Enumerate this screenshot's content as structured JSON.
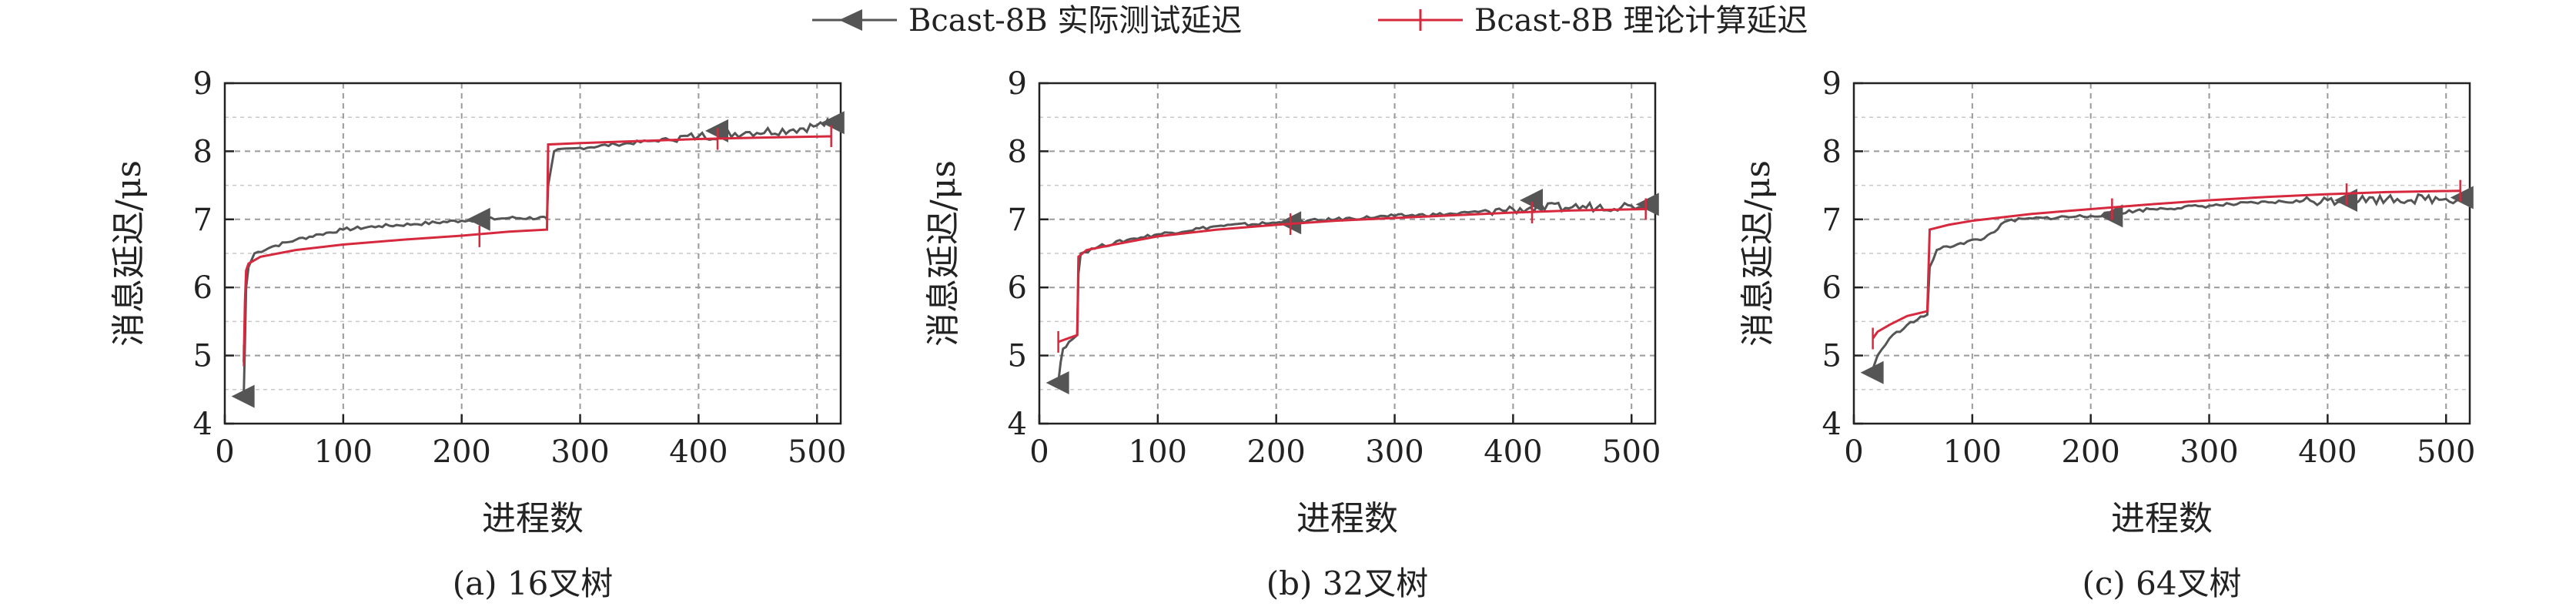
{
  "legend": {
    "position": "top-center",
    "entries": [
      {
        "label": "Bcast-8B 实际测试延迟",
        "color": "#555555",
        "marker": "left-triangle"
      },
      {
        "label": "Bcast-8B 理论计算延迟",
        "color": "#d6293e",
        "marker": "vertical-tick"
      }
    ]
  },
  "chart_data": [
    {
      "type": "line",
      "caption": "(a)  16叉树",
      "xlabel": "进程数",
      "ylabel": "消息延迟/μs",
      "xlim": [
        0,
        520
      ],
      "ylim": [
        4,
        9
      ],
      "xticks": [
        0,
        100,
        200,
        300,
        400,
        500
      ],
      "yticks": [
        4,
        5,
        6,
        7,
        8,
        9
      ],
      "grid": true,
      "series": [
        {
          "name": "Bcast-8B 实际测试延迟",
          "color": "#555555",
          "points": [
            [
              16,
              4.4
            ],
            [
              17,
              5.2
            ],
            [
              18,
              6.0
            ],
            [
              20,
              6.3
            ],
            [
              25,
              6.5
            ],
            [
              40,
              6.6
            ],
            [
              60,
              6.7
            ],
            [
              80,
              6.78
            ],
            [
              100,
              6.85
            ],
            [
              130,
              6.9
            ],
            [
              160,
              6.93
            ],
            [
              200,
              6.98
            ],
            [
              240,
              7.02
            ],
            [
              272,
              7.02
            ],
            [
              273,
              7.5
            ],
            [
              275,
              7.7
            ],
            [
              278,
              8.0
            ],
            [
              300,
              8.05
            ],
            [
              330,
              8.1
            ],
            [
              360,
              8.15
            ],
            [
              400,
              8.22
            ],
            [
              440,
              8.28
            ],
            [
              480,
              8.32
            ],
            [
              500,
              8.38
            ],
            [
              512,
              8.42
            ]
          ],
          "markers": [
            [
              16,
              4.4
            ],
            [
              215,
              7.0
            ],
            [
              416,
              8.3
            ],
            [
              514,
              8.42
            ]
          ]
        },
        {
          "name": "Bcast-8B 理论计算延迟",
          "color": "#d6293e",
          "points": [
            [
              16,
              4.9
            ],
            [
              17,
              5.8
            ],
            [
              18,
              6.25
            ],
            [
              20,
              6.35
            ],
            [
              30,
              6.45
            ],
            [
              60,
              6.55
            ],
            [
              100,
              6.63
            ],
            [
              150,
              6.7
            ],
            [
              200,
              6.76
            ],
            [
              240,
              6.82
            ],
            [
              272,
              6.85
            ],
            [
              273,
              8.1
            ],
            [
              300,
              8.12
            ],
            [
              350,
              8.15
            ],
            [
              400,
              8.18
            ],
            [
              450,
              8.2
            ],
            [
              512,
              8.22
            ]
          ],
          "markers": [
            [
              16,
              5.0
            ],
            [
              215,
              6.75
            ],
            [
              416,
              8.18
            ],
            [
              512,
              8.22
            ]
          ]
        }
      ]
    },
    {
      "type": "line",
      "caption": "(b)  32叉树",
      "xlabel": "进程数",
      "ylabel": "消息延迟/μs",
      "xlim": [
        0,
        520
      ],
      "ylim": [
        4,
        9
      ],
      "xticks": [
        0,
        100,
        200,
        300,
        400,
        500
      ],
      "yticks": [
        4,
        5,
        6,
        7,
        8,
        9
      ],
      "grid": true,
      "series": [
        {
          "name": "Bcast-8B 实际测试延迟",
          "color": "#555555",
          "points": [
            [
              16,
              4.6
            ],
            [
              18,
              4.9
            ],
            [
              20,
              5.1
            ],
            [
              25,
              5.2
            ],
            [
              32,
              5.3
            ],
            [
              33,
              6.2
            ],
            [
              35,
              6.5
            ],
            [
              50,
              6.6
            ],
            [
              80,
              6.72
            ],
            [
              100,
              6.78
            ],
            [
              150,
              6.9
            ],
            [
              200,
              6.95
            ],
            [
              250,
              7.0
            ],
            [
              300,
              7.05
            ],
            [
              350,
              7.08
            ],
            [
              400,
              7.15
            ],
            [
              450,
              7.18
            ],
            [
              500,
              7.2
            ],
            [
              512,
              7.22
            ]
          ],
          "markers": [
            [
              16,
              4.6
            ],
            [
              212,
              6.95
            ],
            [
              416,
              7.28
            ],
            [
              514,
              7.22
            ]
          ]
        },
        {
          "name": "Bcast-8B 理论计算延迟",
          "color": "#d6293e",
          "points": [
            [
              16,
              5.2
            ],
            [
              32,
              5.3
            ],
            [
              33,
              6.45
            ],
            [
              40,
              6.55
            ],
            [
              60,
              6.62
            ],
            [
              100,
              6.75
            ],
            [
              150,
              6.85
            ],
            [
              200,
              6.92
            ],
            [
              250,
              6.98
            ],
            [
              300,
              7.02
            ],
            [
              350,
              7.06
            ],
            [
              400,
              7.1
            ],
            [
              450,
              7.13
            ],
            [
              512,
              7.15
            ]
          ],
          "markers": [
            [
              16,
              5.2
            ],
            [
              212,
              6.93
            ],
            [
              416,
              7.1
            ],
            [
              512,
              7.15
            ]
          ]
        }
      ]
    },
    {
      "type": "line",
      "caption": "(c)  64叉树",
      "xlabel": "进程数",
      "ylabel": "消息延迟/μs",
      "xlim": [
        0,
        520
      ],
      "ylim": [
        4,
        9
      ],
      "xticks": [
        0,
        100,
        200,
        300,
        400,
        500
      ],
      "yticks": [
        4,
        5,
        6,
        7,
        8,
        9
      ],
      "grid": true,
      "series": [
        {
          "name": "Bcast-8B 实际测试延迟",
          "color": "#555555",
          "points": [
            [
              16,
              4.8
            ],
            [
              20,
              5.0
            ],
            [
              30,
              5.25
            ],
            [
              45,
              5.45
            ],
            [
              62,
              5.6
            ],
            [
              64,
              6.3
            ],
            [
              70,
              6.55
            ],
            [
              90,
              6.65
            ],
            [
              110,
              6.72
            ],
            [
              130,
              6.98
            ],
            [
              160,
              7.02
            ],
            [
              200,
              7.05
            ],
            [
              250,
              7.15
            ],
            [
              300,
              7.2
            ],
            [
              350,
              7.25
            ],
            [
              400,
              7.28
            ],
            [
              450,
              7.3
            ],
            [
              500,
              7.3
            ],
            [
              512,
              7.3
            ]
          ],
          "markers": [
            [
              16,
              4.75
            ],
            [
              218,
              7.05
            ],
            [
              416,
              7.28
            ],
            [
              514,
              7.32
            ]
          ]
        },
        {
          "name": "Bcast-8B 理论计算延迟",
          "color": "#d6293e",
          "points": [
            [
              16,
              5.25
            ],
            [
              20,
              5.35
            ],
            [
              30,
              5.45
            ],
            [
              45,
              5.58
            ],
            [
              62,
              5.65
            ],
            [
              64,
              6.85
            ],
            [
              80,
              6.92
            ],
            [
              100,
              6.98
            ],
            [
              150,
              7.08
            ],
            [
              200,
              7.15
            ],
            [
              250,
              7.22
            ],
            [
              300,
              7.28
            ],
            [
              350,
              7.33
            ],
            [
              400,
              7.37
            ],
            [
              450,
              7.4
            ],
            [
              512,
              7.42
            ]
          ],
          "markers": [
            [
              16,
              5.25
            ],
            [
              218,
              7.15
            ],
            [
              416,
              7.37
            ],
            [
              512,
              7.42
            ]
          ]
        }
      ]
    }
  ]
}
